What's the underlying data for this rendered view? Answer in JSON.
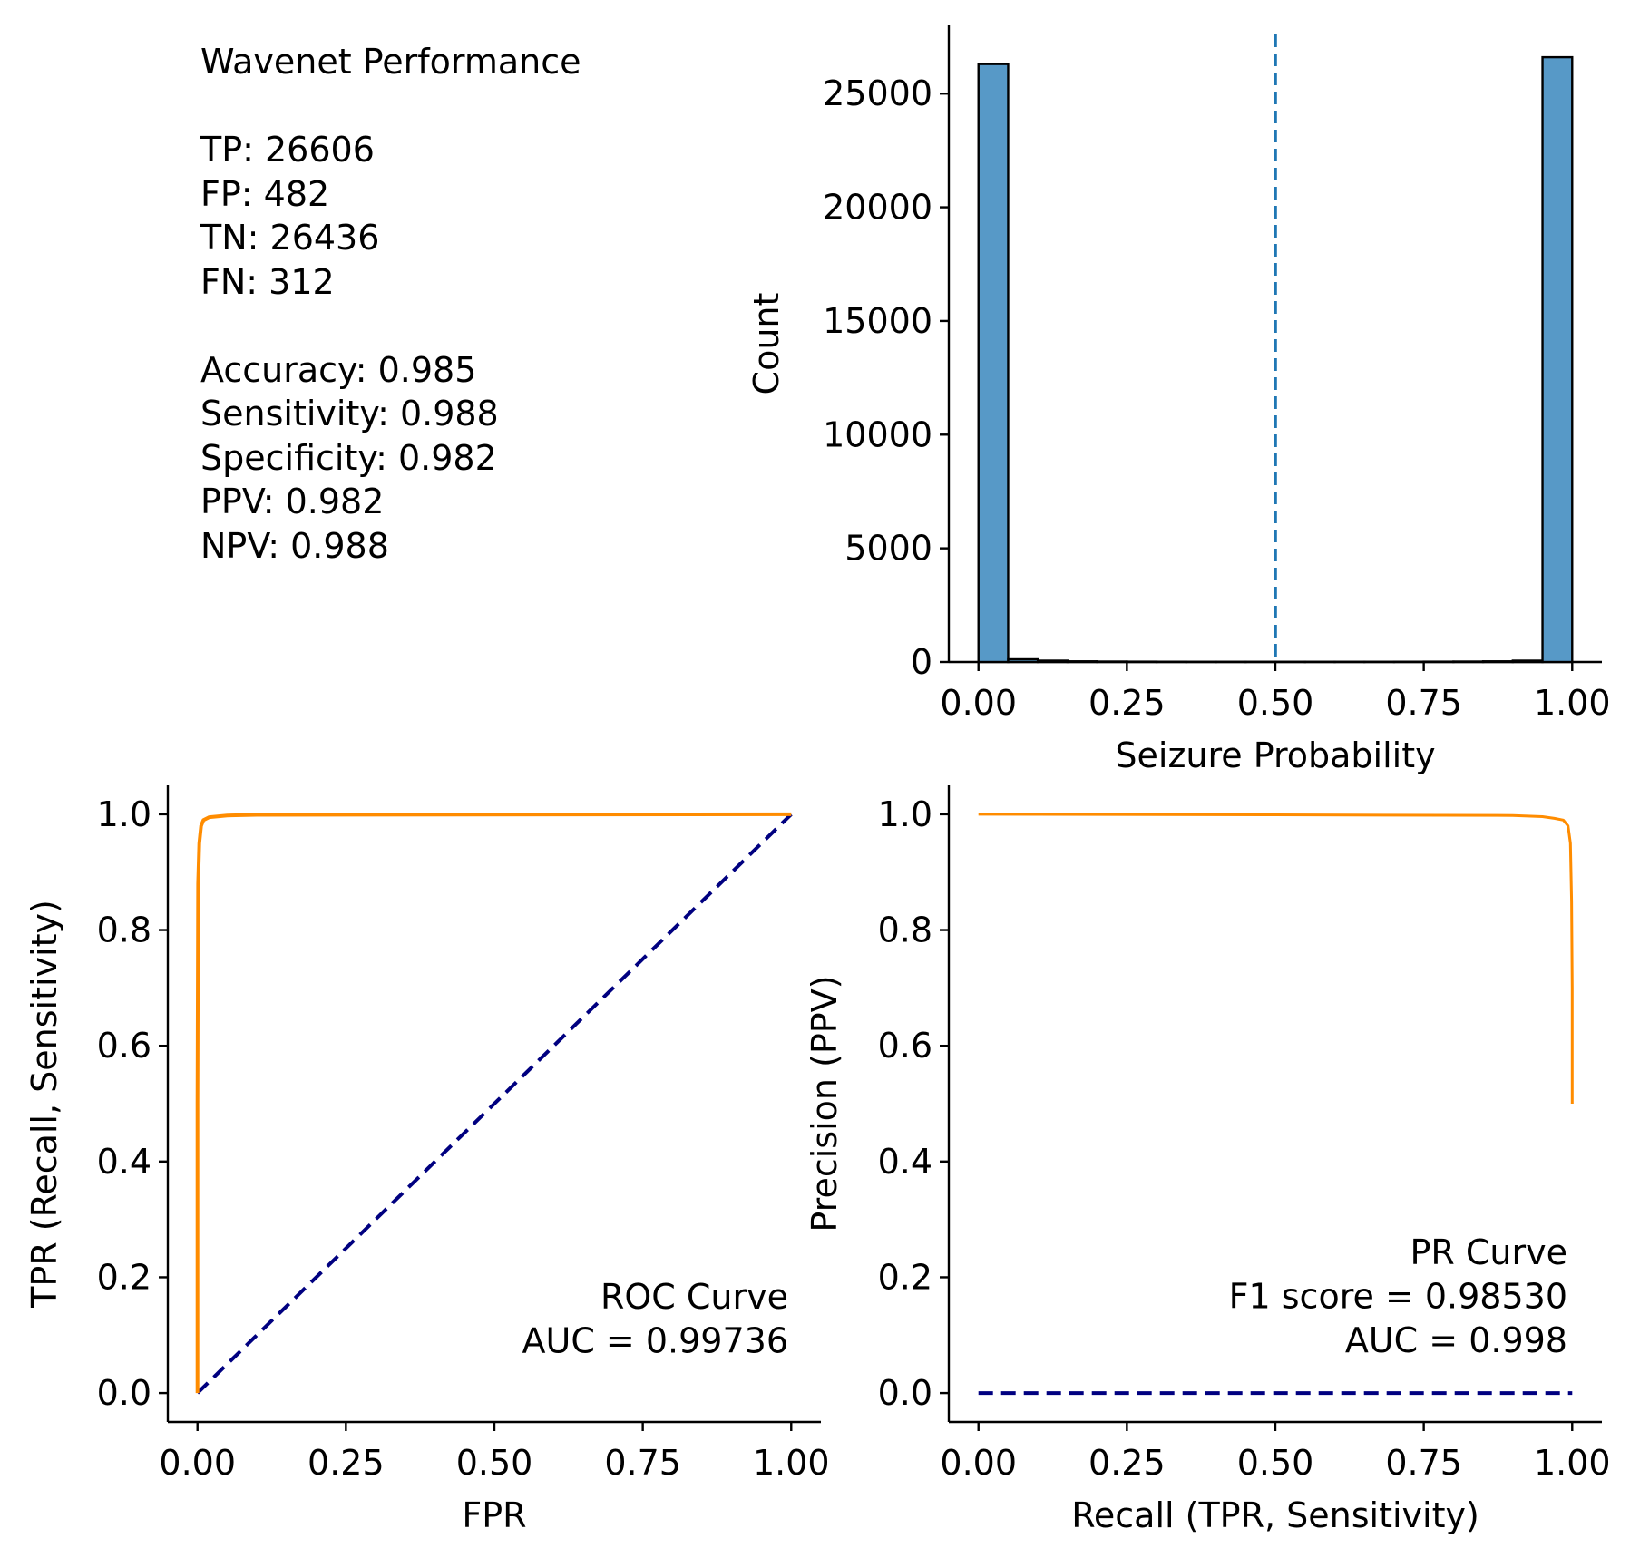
{
  "summary": {
    "title": "Wavenet Performance",
    "counts": [
      "TP: 26606",
      "FP: 482",
      "TN: 26436",
      "FN: 312"
    ],
    "metrics": [
      "Accuracy: 0.985",
      "Sensitivity: 0.988",
      "Specificity: 0.982",
      "PPV: 0.982",
      "NPV: 0.988"
    ]
  },
  "colors": {
    "bar": "#5799c7",
    "threshold": "#1f77b4",
    "curve": "#ff8c00",
    "chance": "#000080"
  },
  "chart_data": [
    {
      "id": "histogram",
      "type": "bar",
      "xlabel": "Seizure Probability",
      "ylabel": "Count",
      "xlim": [
        -0.05,
        1.05
      ],
      "ylim": [
        0,
        28000
      ],
      "xticks": [
        "0.00",
        "0.25",
        "0.50",
        "0.75",
        "1.00"
      ],
      "yticks": [
        "0",
        "5000",
        "10000",
        "15000",
        "20000",
        "25000"
      ],
      "bin_edges": [
        0.0,
        0.05,
        0.1,
        0.15,
        0.2,
        0.25,
        0.3,
        0.35,
        0.4,
        0.45,
        0.5,
        0.55,
        0.6,
        0.65,
        0.7,
        0.75,
        0.8,
        0.85,
        0.9,
        0.95,
        1.0
      ],
      "values": [
        26300,
        120,
        60,
        30,
        20,
        15,
        12,
        10,
        10,
        10,
        10,
        10,
        10,
        10,
        12,
        15,
        20,
        30,
        60,
        26600
      ],
      "threshold": 0.5,
      "grid": false
    },
    {
      "id": "roc",
      "type": "line",
      "xlabel": "FPR",
      "ylabel": "TPR (Recall, Sensitivity)",
      "xlim": [
        -0.05,
        1.05
      ],
      "ylim": [
        -0.05,
        1.05
      ],
      "xticks": [
        "0.00",
        "0.25",
        "0.50",
        "0.75",
        "1.00"
      ],
      "yticks": [
        "0.0",
        "0.2",
        "0.4",
        "0.6",
        "0.8",
        "1.0"
      ],
      "series": [
        {
          "x": [
            0,
            0,
            0.001,
            0.003,
            0.006,
            0.01,
            0.02,
            0.05,
            0.1,
            1.0
          ],
          "y": [
            0,
            0.5,
            0.88,
            0.95,
            0.98,
            0.99,
            0.995,
            0.998,
            0.999,
            1.0
          ]
        },
        {
          "x": [
            0,
            1
          ],
          "y": [
            0,
            1
          ]
        }
      ],
      "annotation": [
        "ROC Curve",
        "AUC = 0.99736"
      ],
      "grid": false
    },
    {
      "id": "pr",
      "type": "line",
      "xlabel": "Recall (TPR, Sensitivity)",
      "ylabel": "Precision (PPV)",
      "xlim": [
        -0.05,
        1.05
      ],
      "ylim": [
        -0.05,
        1.05
      ],
      "xticks": [
        "0.00",
        "0.25",
        "0.50",
        "0.75",
        "1.00"
      ],
      "yticks": [
        "0.0",
        "0.2",
        "0.4",
        "0.6",
        "0.8",
        "1.0"
      ],
      "series": [
        {
          "x": [
            0,
            0.5,
            0.9,
            0.95,
            0.97,
            0.985,
            0.993,
            0.997,
            0.999,
            1.0,
            1.0
          ],
          "y": [
            1.0,
            0.999,
            0.998,
            0.996,
            0.993,
            0.99,
            0.98,
            0.95,
            0.85,
            0.7,
            0.5
          ]
        },
        {
          "x": [
            0,
            1
          ],
          "y": [
            0,
            0
          ]
        }
      ],
      "annotation": [
        "PR Curve",
        "F1 score = 0.98530 ",
        "AUC = 0.998"
      ],
      "grid": false
    }
  ]
}
